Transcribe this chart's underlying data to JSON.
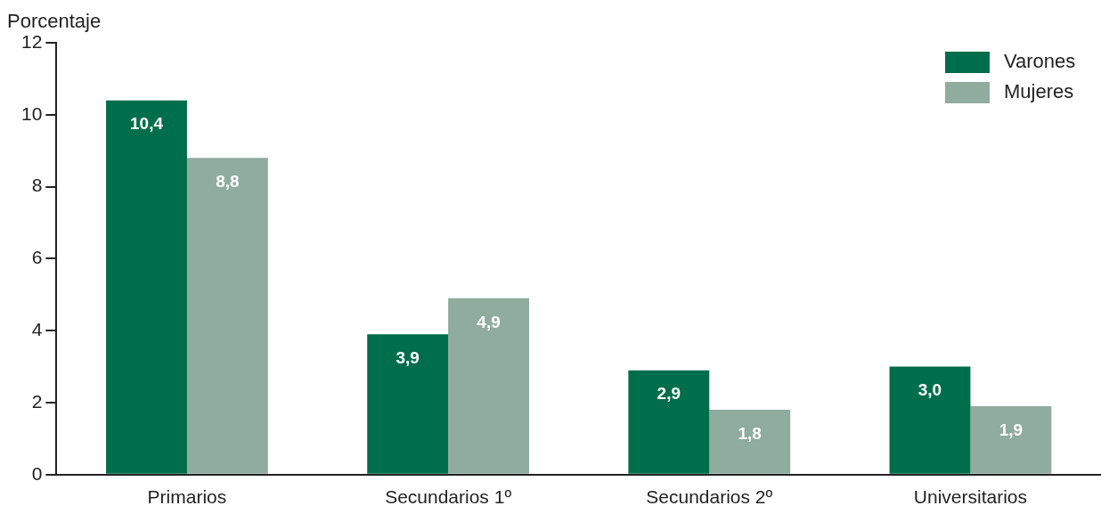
{
  "chart_data": {
    "type": "bar",
    "ylabel": "Porcentaje",
    "categories": [
      "Primarios",
      "Secundarios 1º",
      "Secundarios 2º",
      "Universitarios"
    ],
    "series": [
      {
        "name": "Varones",
        "color": "#006e4a",
        "values": [
          10.4,
          3.9,
          2.9,
          3.0
        ],
        "value_labels": [
          "10,4",
          "3,9",
          "2,9",
          "3,0"
        ]
      },
      {
        "name": "Mujeres",
        "color": "#8fac9e",
        "values": [
          8.8,
          4.9,
          1.8,
          1.9
        ],
        "value_labels": [
          "8,8",
          "4,9",
          "1,8",
          "1,9"
        ]
      }
    ],
    "ylim": [
      0,
      12
    ],
    "yticks": [
      0,
      2,
      4,
      6,
      8,
      10,
      12
    ],
    "grid": false,
    "legend": "top right"
  }
}
